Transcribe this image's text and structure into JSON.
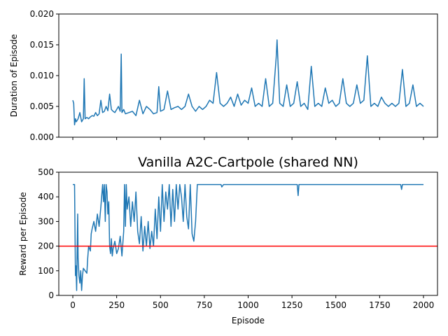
{
  "figure": {
    "background": "#ffffff",
    "series_color": "#1f77b4",
    "threshold_color": "#ff0000"
  },
  "chart_data": [
    {
      "type": "line",
      "title": "",
      "xlabel": "",
      "ylabel": "Duration of Episode",
      "xlim": [
        -80,
        2080
      ],
      "ylim": [
        0.0,
        0.02
      ],
      "xticks": [
        0,
        250,
        500,
        750,
        1000,
        1250,
        1500,
        1750,
        2000
      ],
      "xtick_labels_visible": false,
      "yticks": [
        0.0,
        0.005,
        0.01,
        0.015,
        0.02
      ],
      "ytick_labels": [
        "0.000",
        "0.005",
        "0.010",
        "0.015",
        "0.020"
      ],
      "grid": false,
      "series": [
        {
          "color": "#1f77b4",
          "x": [
            0,
            5,
            10,
            15,
            20,
            30,
            40,
            50,
            60,
            65,
            70,
            80,
            90,
            100,
            110,
            120,
            130,
            140,
            150,
            160,
            170,
            180,
            190,
            200,
            210,
            220,
            230,
            240,
            250,
            260,
            270,
            276,
            280,
            290,
            300,
            320,
            340,
            360,
            380,
            400,
            420,
            440,
            460,
            480,
            490,
            500,
            520,
            540,
            560,
            580,
            600,
            620,
            640,
            660,
            680,
            700,
            720,
            740,
            760,
            780,
            800,
            820,
            840,
            860,
            880,
            900,
            920,
            940,
            960,
            980,
            1000,
            1020,
            1040,
            1060,
            1080,
            1100,
            1120,
            1140,
            1160,
            1165,
            1180,
            1200,
            1220,
            1240,
            1260,
            1280,
            1300,
            1320,
            1340,
            1360,
            1380,
            1400,
            1420,
            1440,
            1460,
            1480,
            1500,
            1520,
            1540,
            1560,
            1580,
            1600,
            1620,
            1640,
            1660,
            1680,
            1700,
            1720,
            1740,
            1760,
            1780,
            1800,
            1820,
            1840,
            1860,
            1880,
            1900,
            1920,
            1940,
            1960,
            1980,
            2000
          ],
          "y": [
            0.006,
            0.0055,
            0.002,
            0.003,
            0.0025,
            0.003,
            0.004,
            0.0025,
            0.003,
            0.0095,
            0.003,
            0.0032,
            0.003,
            0.0033,
            0.0035,
            0.0034,
            0.004,
            0.0035,
            0.0038,
            0.006,
            0.004,
            0.0042,
            0.005,
            0.0043,
            0.007,
            0.0045,
            0.0042,
            0.004,
            0.0045,
            0.005,
            0.0042,
            0.0135,
            0.004,
            0.0045,
            0.0038,
            0.004,
            0.0042,
            0.0035,
            0.006,
            0.0038,
            0.005,
            0.0045,
            0.0038,
            0.004,
            0.0082,
            0.0042,
            0.0045,
            0.0075,
            0.0045,
            0.0048,
            0.005,
            0.0045,
            0.005,
            0.007,
            0.005,
            0.0042,
            0.005,
            0.0045,
            0.005,
            0.006,
            0.0055,
            0.0105,
            0.0055,
            0.005,
            0.0055,
            0.0065,
            0.005,
            0.007,
            0.0052,
            0.006,
            0.0055,
            0.008,
            0.005,
            0.0055,
            0.005,
            0.0095,
            0.005,
            0.0055,
            0.013,
            0.0158,
            0.0055,
            0.005,
            0.0085,
            0.005,
            0.0055,
            0.009,
            0.005,
            0.0055,
            0.0045,
            0.0115,
            0.005,
            0.0055,
            0.005,
            0.008,
            0.0055,
            0.006,
            0.005,
            0.0055,
            0.0095,
            0.0055,
            0.005,
            0.0055,
            0.0085,
            0.0055,
            0.006,
            0.0132,
            0.005,
            0.0055,
            0.005,
            0.0065,
            0.0055,
            0.005,
            0.0055,
            0.005,
            0.0055,
            0.011,
            0.005,
            0.0055,
            0.0085,
            0.005,
            0.0055,
            0.005
          ]
        }
      ]
    },
    {
      "type": "line",
      "title": "Vanilla A2C-Cartpole (shared NN)",
      "xlabel": "Episode",
      "ylabel": "Reward per Episode",
      "xlim": [
        -80,
        2080
      ],
      "ylim": [
        0,
        500
      ],
      "xticks": [
        0,
        250,
        500,
        750,
        1000,
        1250,
        1500,
        1750,
        2000
      ],
      "xtick_labels": [
        "0",
        "250",
        "500",
        "750",
        "1000",
        "1250",
        "1500",
        "1750",
        "2000"
      ],
      "yticks": [
        0,
        100,
        200,
        300,
        400,
        500
      ],
      "ytick_labels": [
        "0",
        "100",
        "200",
        "300",
        "400",
        "500"
      ],
      "grid": false,
      "hline": {
        "y": 200,
        "color": "#ff0000"
      },
      "series": [
        {
          "color": "#1f77b4",
          "x": [
            0,
            10,
            15,
            18,
            22,
            25,
            28,
            30,
            35,
            40,
            45,
            50,
            55,
            60,
            70,
            80,
            85,
            90,
            100,
            105,
            110,
            120,
            130,
            140,
            150,
            160,
            170,
            175,
            180,
            185,
            190,
            195,
            200,
            205,
            210,
            215,
            220,
            225,
            230,
            240,
            250,
            260,
            270,
            280,
            290,
            295,
            300,
            305,
            310,
            320,
            330,
            340,
            350,
            360,
            370,
            380,
            390,
            400,
            410,
            420,
            430,
            440,
            450,
            460,
            470,
            480,
            490,
            500,
            510,
            520,
            530,
            540,
            550,
            560,
            570,
            580,
            590,
            600,
            610,
            620,
            630,
            640,
            650,
            660,
            670,
            680,
            690,
            700,
            710,
            720,
            730,
            740,
            800,
            845,
            850,
            860,
            1200,
            1280,
            1285,
            1290,
            1295,
            1600,
            1860,
            1870,
            1875,
            1880,
            1885,
            1890,
            2000
          ],
          "y": [
            450,
            450,
            80,
            120,
            20,
            200,
            330,
            150,
            80,
            50,
            100,
            20,
            80,
            110,
            100,
            90,
            150,
            200,
            180,
            250,
            270,
            300,
            260,
            330,
            280,
            360,
            450,
            380,
            450,
            300,
            450,
            420,
            330,
            380,
            200,
            170,
            230,
            160,
            190,
            220,
            170,
            190,
            240,
            160,
            260,
            450,
            280,
            450,
            350,
            400,
            280,
            380,
            300,
            420,
            260,
            210,
            320,
            180,
            280,
            200,
            300,
            190,
            260,
            200,
            350,
            230,
            400,
            260,
            450,
            300,
            420,
            350,
            450,
            280,
            430,
            300,
            450,
            350,
            450,
            400,
            300,
            450,
            320,
            270,
            450,
            250,
            220,
            300,
            450,
            450,
            450,
            450,
            450,
            450,
            440,
            450,
            450,
            450,
            405,
            450,
            450,
            450,
            450,
            450,
            430,
            450,
            450,
            450,
            450
          ]
        }
      ]
    }
  ]
}
